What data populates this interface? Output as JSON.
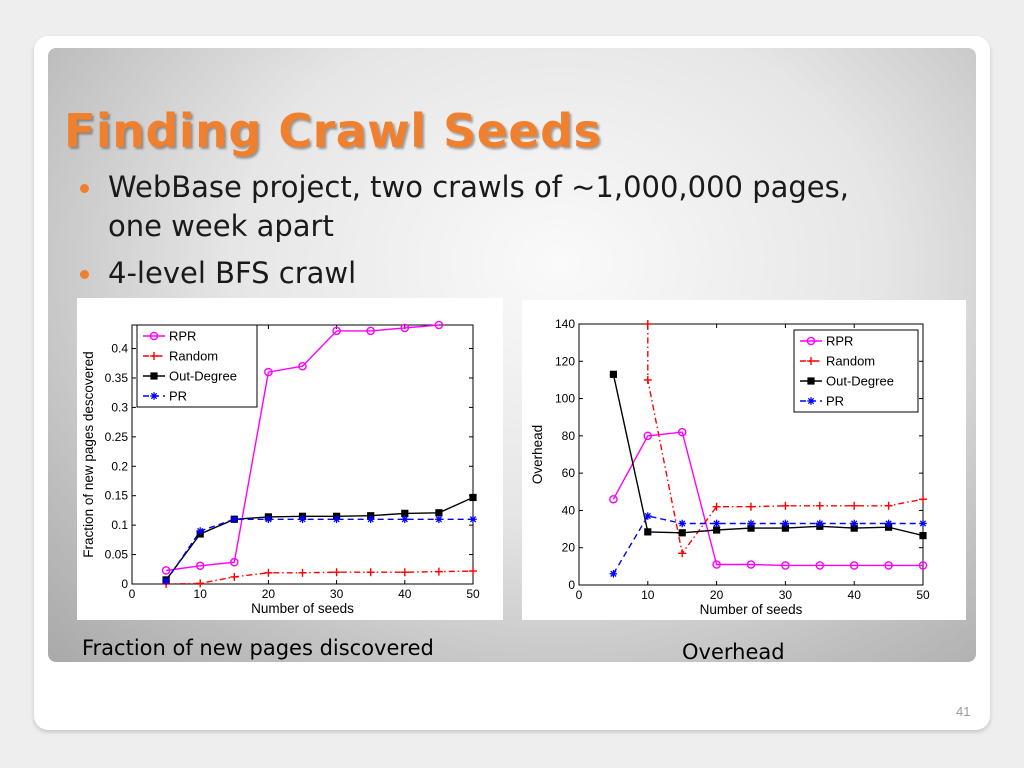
{
  "title": "Finding Crawl Seeds",
  "bullets": [
    "WebBase project, two crawls of ~1,000,000 pages, one week apart",
    "4-level BFS crawl"
  ],
  "captions": {
    "left": "Fraction of new pages discovered",
    "right": "Overhead"
  },
  "slide_number": "41",
  "chart_data": [
    {
      "type": "line",
      "xlabel": "Number of seeds",
      "ylabel": "Fraction of new pages descovered",
      "xlim": [
        0,
        50
      ],
      "ylim": [
        0,
        0.44
      ],
      "xticks": [
        0,
        10,
        20,
        30,
        40,
        50
      ],
      "yticks": [
        0,
        0.05,
        0.1,
        0.15,
        0.2,
        0.25,
        0.3,
        0.35,
        0.4
      ],
      "legend_position": "top-left",
      "series": [
        {
          "name": "RPR",
          "color": "#ff00ff",
          "marker": "circle",
          "dash": "solid",
          "x": [
            5,
            10,
            15,
            20,
            25,
            30,
            35,
            40,
            45
          ],
          "y": [
            0.023,
            0.031,
            0.037,
            0.36,
            0.37,
            0.43,
            0.43,
            0.435,
            0.44
          ]
        },
        {
          "name": "Random",
          "color": "#ff0000",
          "marker": "plus",
          "dash": "dashdot",
          "x": [
            5,
            10,
            15,
            20,
            25,
            30,
            35,
            40,
            45,
            50
          ],
          "y": [
            0.0,
            0.001,
            0.012,
            0.019,
            0.019,
            0.02,
            0.02,
            0.02,
            0.021,
            0.022
          ]
        },
        {
          "name": "Out-Degree",
          "color": "#000000",
          "marker": "square",
          "dash": "solid",
          "x": [
            5,
            10,
            15,
            20,
            25,
            30,
            35,
            40,
            45,
            50
          ],
          "y": [
            0.007,
            0.085,
            0.11,
            0.114,
            0.115,
            0.115,
            0.116,
            0.12,
            0.121,
            0.147
          ]
        },
        {
          "name": "PR",
          "color": "#0000ff",
          "marker": "star",
          "dash": "dashed",
          "x": [
            5,
            10,
            15,
            20,
            25,
            30,
            35,
            40,
            45,
            50
          ],
          "y": [
            0.005,
            0.09,
            0.11,
            0.11,
            0.11,
            0.11,
            0.11,
            0.11,
            0.11,
            0.11
          ]
        }
      ]
    },
    {
      "type": "line",
      "xlabel": "Number of seeds",
      "ylabel": "Overhead",
      "xlim": [
        0,
        50
      ],
      "ylim": [
        0,
        140
      ],
      "xticks": [
        0,
        10,
        20,
        30,
        40,
        50
      ],
      "yticks": [
        0,
        20,
        40,
        60,
        80,
        100,
        120,
        140
      ],
      "legend_position": "top-right",
      "series": [
        {
          "name": "RPR",
          "color": "#ff00ff",
          "marker": "circle",
          "dash": "solid",
          "x": [
            5,
            10,
            15,
            20,
            25,
            30,
            35,
            40,
            45,
            50
          ],
          "y": [
            46,
            80,
            82,
            11,
            11,
            10.5,
            10.5,
            10.5,
            10.5,
            10.5
          ]
        },
        {
          "name": "Random",
          "color": "#ff0000",
          "marker": "plus",
          "dash": "dashdot",
          "x": [
            10,
            10,
            15,
            20,
            25,
            30,
            35,
            40,
            45,
            50
          ],
          "y": [
            140,
            110,
            17,
            42,
            42,
            42.5,
            42.5,
            42.5,
            42.5,
            46
          ]
        },
        {
          "name": "Out-Degree",
          "color": "#000000",
          "marker": "square",
          "dash": "solid",
          "x": [
            5,
            10,
            15,
            20,
            25,
            30,
            35,
            40,
            45,
            50
          ],
          "y": [
            113,
            28.5,
            28,
            29.5,
            30.5,
            30.5,
            31.5,
            30.5,
            31,
            26.5
          ]
        },
        {
          "name": "PR",
          "color": "#0000ff",
          "marker": "star",
          "dash": "dashed",
          "x": [
            5,
            10,
            15,
            20,
            25,
            30,
            35,
            40,
            45,
            50
          ],
          "y": [
            6,
            37,
            33,
            33,
            33,
            33,
            33,
            33,
            33,
            33
          ]
        }
      ]
    }
  ]
}
